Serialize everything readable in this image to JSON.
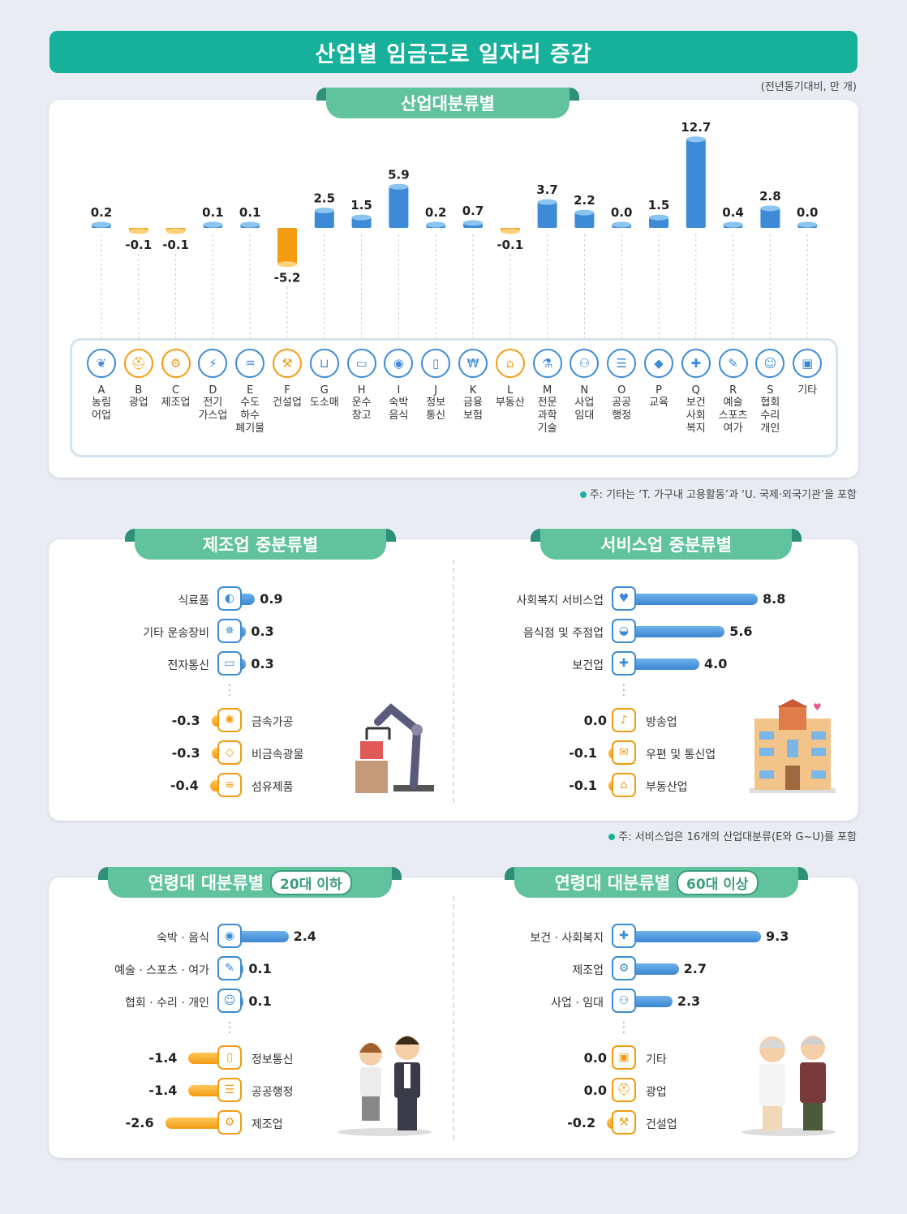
{
  "header": {
    "title": "산업별 임금근로 일자리 증감",
    "unit": "(전년동기대비, 만 개)"
  },
  "colors": {
    "positive": "#3d8bd6",
    "negative": "#f39c12",
    "accent": "#17b09b",
    "ribbon": "#60c39e"
  },
  "industry": {
    "ribbon": "산업대분류별",
    "note": "주: 기타는 ‘T. 가구내 고용활동’과 ‘U. 국제·외국기관’을 포함",
    "items": [
      {
        "code": "A",
        "name": "농림\n어업",
        "icon": "wheat-icon",
        "glyph": "❦"
      },
      {
        "code": "B",
        "name": "광업",
        "icon": "helmet-icon",
        "glyph": "⛑"
      },
      {
        "code": "C",
        "name": "제조업",
        "icon": "gear-icon",
        "glyph": "⚙"
      },
      {
        "code": "D",
        "name": "전기\n가스업",
        "icon": "lightning-icon",
        "glyph": "⚡"
      },
      {
        "code": "E",
        "name": "수도\n하수\n폐기물",
        "icon": "faucet-icon",
        "glyph": "♒"
      },
      {
        "code": "F",
        "name": "건설업",
        "icon": "excavator-icon",
        "glyph": "⚒"
      },
      {
        "code": "G",
        "name": "도소매",
        "icon": "basket-icon",
        "glyph": "⊔"
      },
      {
        "code": "H",
        "name": "운수\n창고",
        "icon": "truck-icon",
        "glyph": "▭"
      },
      {
        "code": "I",
        "name": "숙박\n음식",
        "icon": "dining-icon",
        "glyph": "◉"
      },
      {
        "code": "J",
        "name": "정보\n통신",
        "icon": "phone-icon",
        "glyph": "▯"
      },
      {
        "code": "K",
        "name": "금융\n보험",
        "icon": "laptop-won-icon",
        "glyph": "₩"
      },
      {
        "code": "L",
        "name": "부동산",
        "icon": "house-won-icon",
        "glyph": "⌂"
      },
      {
        "code": "M",
        "name": "전문\n과학\n기술",
        "icon": "flask-icon",
        "glyph": "⚗"
      },
      {
        "code": "N",
        "name": "사업\n임대",
        "icon": "handshake-icon",
        "glyph": "⚇"
      },
      {
        "code": "O",
        "name": "공공\n행정",
        "icon": "scroll-icon",
        "glyph": "☰"
      },
      {
        "code": "P",
        "name": "교육",
        "icon": "graduation-cap-icon",
        "glyph": "◆"
      },
      {
        "code": "Q",
        "name": "보건\n사회\n복지",
        "icon": "medical-kit-icon",
        "glyph": "✚"
      },
      {
        "code": "R",
        "name": "예술\n스포츠\n여가",
        "icon": "palette-icon",
        "glyph": "✎"
      },
      {
        "code": "S",
        "name": "협회\n수리\n개인",
        "icon": "people-icon",
        "glyph": "☺"
      },
      {
        "code": "",
        "name": "기타",
        "icon": "door-icon",
        "glyph": "▣"
      }
    ]
  },
  "manufacturing": {
    "ribbon": "제조업 중분류별",
    "top": [
      {
        "label": "식료품",
        "value": "0.9",
        "icon": "fish-icon",
        "glyph": "◐"
      },
      {
        "label": "기타 운송장비",
        "value": "0.3",
        "icon": "ship-wheel-icon",
        "glyph": "✵"
      },
      {
        "label": "전자통신",
        "value": "0.3",
        "icon": "laptop-wifi-icon",
        "glyph": "▭"
      }
    ],
    "bottom": [
      {
        "label": "금속가공",
        "value": "-0.3",
        "icon": "saw-blade-icon",
        "glyph": "✺"
      },
      {
        "label": "비금속광물",
        "value": "-0.3",
        "icon": "diamond-icon",
        "glyph": "◇"
      },
      {
        "label": "섬유제품",
        "value": "-0.4",
        "icon": "thread-icon",
        "glyph": "≡"
      }
    ]
  },
  "services": {
    "ribbon": "서비스업 중분류별",
    "note": "주: 서비스업은 16개의 산업대분류(E와 G~U)를 포함",
    "top": [
      {
        "label": "사회복지 서비스업",
        "value": "8.8",
        "icon": "caring-hands-icon",
        "glyph": "♥"
      },
      {
        "label": "음식점 및 주점업",
        "value": "5.6",
        "icon": "bowl-icon",
        "glyph": "◒"
      },
      {
        "label": "보건업",
        "value": "4.0",
        "icon": "medical-cross-icon",
        "glyph": "✚"
      }
    ],
    "bottom": [
      {
        "label": "방송업",
        "value": "0.0",
        "icon": "microphone-icon",
        "glyph": "♪"
      },
      {
        "label": "우편 및 통신업",
        "value": "-0.1",
        "icon": "envelope-icon",
        "glyph": "✉"
      },
      {
        "label": "부동산업",
        "value": "-0.1",
        "icon": "house-won-icon",
        "glyph": "⌂"
      }
    ]
  },
  "age20": {
    "ribbon": "연령대 대분류별",
    "badge": "20대 이하",
    "top": [
      {
        "label": "숙박 · 음식",
        "value": "2.4",
        "icon": "dining-icon",
        "glyph": "◉"
      },
      {
        "label": "예술 · 스포츠 · 여가",
        "value": "0.1",
        "icon": "palette-icon",
        "glyph": "✎"
      },
      {
        "label": "협회 · 수리 · 개인",
        "value": "0.1",
        "icon": "people-icon",
        "glyph": "☺"
      }
    ],
    "bottom": [
      {
        "label": "정보통신",
        "value": "-1.4",
        "icon": "phone-icon",
        "glyph": "▯"
      },
      {
        "label": "공공행정",
        "value": "-1.4",
        "icon": "scroll-icon",
        "glyph": "☰"
      },
      {
        "label": "제조업",
        "value": "-2.6",
        "icon": "gear-icon",
        "glyph": "⚙"
      }
    ]
  },
  "age60": {
    "ribbon": "연령대 대분류별",
    "badge": "60대 이상",
    "top": [
      {
        "label": "보건 · 사회복지",
        "value": "9.3",
        "icon": "medical-kit-icon",
        "glyph": "✚"
      },
      {
        "label": "제조업",
        "value": "2.7",
        "icon": "gear-icon",
        "glyph": "⚙"
      },
      {
        "label": "사업 · 임대",
        "value": "2.3",
        "icon": "handshake-icon",
        "glyph": "⚇"
      }
    ],
    "bottom": [
      {
        "label": "기타",
        "value": "0.0",
        "icon": "door-icon",
        "glyph": "▣"
      },
      {
        "label": "광업",
        "value": "0.0",
        "icon": "helmet-icon",
        "glyph": "⛑"
      },
      {
        "label": "건설업",
        "value": "-0.2",
        "icon": "excavator-icon",
        "glyph": "⚒"
      }
    ]
  },
  "chart_data": [
    {
      "type": "bar",
      "title": "산업대분류별",
      "categories": [
        "A",
        "B",
        "C",
        "D",
        "E",
        "F",
        "G",
        "H",
        "I",
        "J",
        "K",
        "L",
        "M",
        "N",
        "O",
        "P",
        "Q",
        "R",
        "S",
        "기타"
      ],
      "values": [
        0.2,
        -0.1,
        -0.1,
        0.1,
        0.1,
        -5.2,
        2.5,
        1.5,
        5.9,
        0.2,
        0.7,
        -0.1,
        3.7,
        2.2,
        0.0,
        1.5,
        12.7,
        0.4,
        2.8,
        0.0
      ]
    },
    {
      "type": "bar",
      "orientation": "horizontal",
      "title": "제조업 중분류별",
      "categories": [
        "식료품",
        "기타 운송장비",
        "전자통신",
        "금속가공",
        "비금속광물",
        "섬유제품"
      ],
      "values": [
        0.9,
        0.3,
        0.3,
        -0.3,
        -0.3,
        -0.4
      ]
    },
    {
      "type": "bar",
      "orientation": "horizontal",
      "title": "서비스업 중분류별",
      "categories": [
        "사회복지 서비스업",
        "음식점 및 주점업",
        "보건업",
        "방송업",
        "우편 및 통신업",
        "부동산업"
      ],
      "values": [
        8.8,
        5.6,
        4.0,
        0.0,
        -0.1,
        -0.1
      ]
    },
    {
      "type": "bar",
      "orientation": "horizontal",
      "title": "연령대 대분류별 20대 이하",
      "categories": [
        "숙박 · 음식",
        "예술 · 스포츠 · 여가",
        "협회 · 수리 · 개인",
        "정보통신",
        "공공행정",
        "제조업"
      ],
      "values": [
        2.4,
        0.1,
        0.1,
        -1.4,
        -1.4,
        -2.6
      ]
    },
    {
      "type": "bar",
      "orientation": "horizontal",
      "title": "연령대 대분류별 60대 이상",
      "categories": [
        "보건 · 사회복지",
        "제조업",
        "사업 · 임대",
        "기타",
        "광업",
        "건설업"
      ],
      "values": [
        9.3,
        2.7,
        2.3,
        0.0,
        0.0,
        -0.2
      ]
    }
  ]
}
